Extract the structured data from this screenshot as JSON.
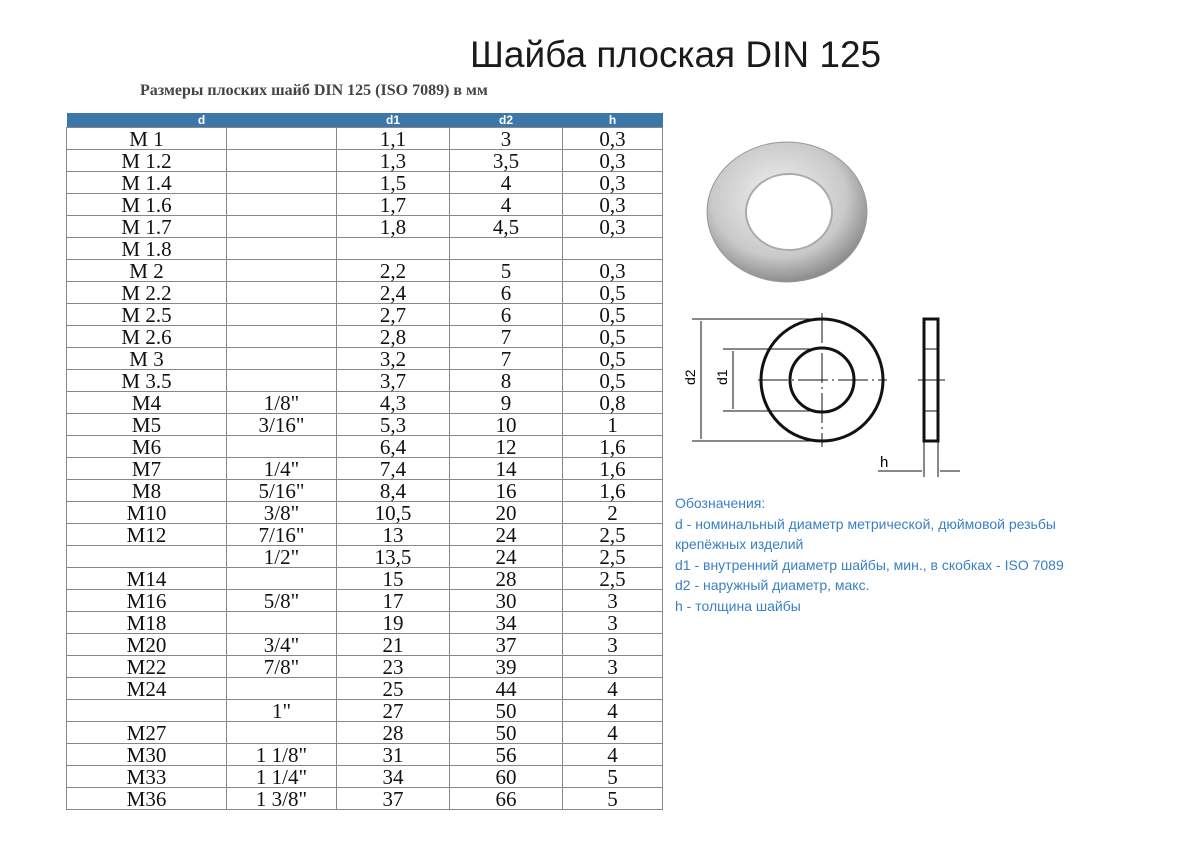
{
  "title": "Шайба плоская DIN 125",
  "subtitle": "Размеры плоских шайб DIN 125 (ISO 7089) в мм",
  "table": {
    "headers": [
      "d",
      "d1",
      "d2",
      "h"
    ],
    "rows": [
      [
        "M 1",
        "",
        "1,1",
        "3",
        "0,3"
      ],
      [
        "M 1.2",
        "",
        "1,3",
        "3,5",
        "0,3"
      ],
      [
        "M 1.4",
        "",
        "1,5",
        "4",
        "0,3"
      ],
      [
        "M 1.6",
        "",
        "1,7",
        "4",
        "0,3"
      ],
      [
        "M 1.7",
        "",
        "1,8",
        "4,5",
        "0,3"
      ],
      [
        "M 1.8",
        "",
        "",
        "",
        ""
      ],
      [
        "M 2",
        "",
        "2,2",
        "5",
        "0,3"
      ],
      [
        "M 2.2",
        "",
        "2,4",
        "6",
        "0,5"
      ],
      [
        "M 2.5",
        "",
        "2,7",
        "6",
        "0,5"
      ],
      [
        "M 2.6",
        "",
        "2,8",
        "7",
        "0,5"
      ],
      [
        "M 3",
        "",
        "3,2",
        "7",
        "0,5"
      ],
      [
        "M 3.5",
        "",
        "3,7",
        "8",
        "0,5"
      ],
      [
        "M4",
        "1/8\"",
        "4,3",
        "9",
        "0,8"
      ],
      [
        "M5",
        "3/16\"",
        "5,3",
        "10",
        "1"
      ],
      [
        "M6",
        "",
        "6,4",
        "12",
        "1,6"
      ],
      [
        "M7",
        "1/4\"",
        "7,4",
        "14",
        "1,6"
      ],
      [
        "M8",
        "5/16\"",
        "8,4",
        "16",
        "1,6"
      ],
      [
        "M10",
        "3/8\"",
        "10,5",
        "20",
        "2"
      ],
      [
        "M12",
        "7/16\"",
        "13",
        "24",
        "2,5"
      ],
      [
        "",
        "1/2\"",
        "13,5",
        "24",
        "2,5"
      ],
      [
        "M14",
        "",
        "15",
        "28",
        "2,5"
      ],
      [
        "M16",
        "5/8\"",
        "17",
        "30",
        "3"
      ],
      [
        "M18",
        "",
        "19",
        "34",
        "3"
      ],
      [
        "M20",
        "3/4\"",
        "21",
        "37",
        "3"
      ],
      [
        "M22",
        "7/8\"",
        "23",
        "39",
        "3"
      ],
      [
        "M24",
        "",
        "25",
        "44",
        "4"
      ],
      [
        "",
        "1\"",
        "27",
        "50",
        "4"
      ],
      [
        "M27",
        "",
        "28",
        "50",
        "4"
      ],
      [
        "M30",
        "1 1/8\"",
        "31",
        "56",
        "4"
      ],
      [
        "M33",
        "1 1/4\"",
        "34",
        "60",
        "5"
      ],
      [
        "M36",
        "1 3/8\"",
        "37",
        "66",
        "5"
      ]
    ]
  },
  "drawing": {
    "label_d2": "d2",
    "label_d1": "d1",
    "label_h": "h"
  },
  "legend": {
    "heading": "Обозначения:",
    "lines": [
      "d - номинальный диаметр метрической, дюймовой резьбы",
      "крепёжных изделий",
      "d1 - внутренний диаметр шайбы, мин., в скобках - ISO 7089",
      "d2 - наружный диаметр, макс.",
      "h - толщина шайбы"
    ]
  },
  "colors": {
    "header": "#3d77aa",
    "legend": "#3a7fc4"
  }
}
